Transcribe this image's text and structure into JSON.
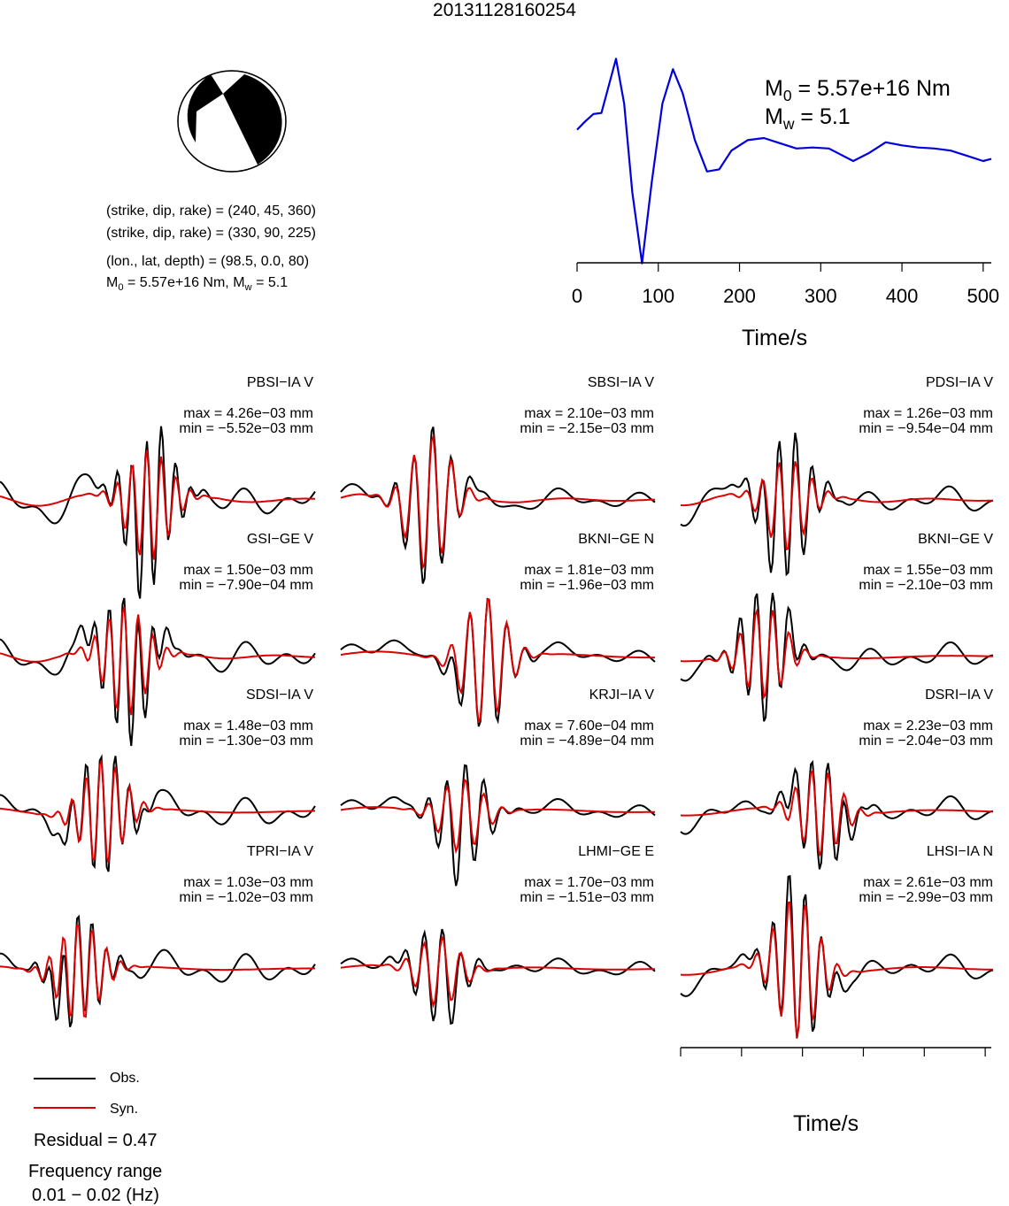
{
  "title": "20131128160254",
  "mechanism": {
    "lines": [
      "(strike, dip, rake) = (240, 45, 360)",
      "(strike, dip, rake) = (330, 90, 225)",
      "(lon., lat, depth) = (98.5, 0.0, 80)"
    ],
    "m0_line_prefix": "M",
    "m0_line_rest": " = 5.57e+16 Nm, M",
    "mw_line_rest": " = 5.1"
  },
  "stf": {
    "m0_text": " = 5.57e+16 Nm",
    "mw_text": " = 5.1",
    "x_ticks": [
      "0",
      "100",
      "200",
      "300",
      "400",
      "500"
    ],
    "xlabel": "Time/s",
    "color": "#0000dd"
  },
  "stations": [
    {
      "name": "PBSI−IA V",
      "max": "max = 4.26e−03 mm",
      "min": "min = −5.52e−03 mm"
    },
    {
      "name": "SBSI−IA V",
      "max": "max = 2.10e−03 mm",
      "min": "min = −2.15e−03 mm"
    },
    {
      "name": "PDSI−IA V",
      "max": "max = 1.26e−03 mm",
      "min": "min = −9.54e−04 mm"
    },
    {
      "name": "GSI−GE V",
      "max": "max = 1.50e−03 mm",
      "min": "min = −7.90e−04 mm"
    },
    {
      "name": "BKNI−GE N",
      "max": "max = 1.81e−03 mm",
      "min": "min = −1.96e−03 mm"
    },
    {
      "name": "BKNI−GE V",
      "max": "max = 1.55e−03 mm",
      "min": "min = −2.10e−03 mm"
    },
    {
      "name": "SDSI−IA V",
      "max": "max = 1.48e−03 mm",
      "min": "min = −1.30e−03 mm"
    },
    {
      "name": "KRJI−IA V",
      "max": "max = 7.60e−04 mm",
      "min": "min = −4.89e−04 mm"
    },
    {
      "name": "DSRI−IA V",
      "max": "max = 2.23e−03 mm",
      "min": "min = −2.04e−03 mm"
    },
    {
      "name": "TPRI−IA V",
      "max": "max = 1.03e−03 mm",
      "min": "min = −1.02e−03 mm"
    },
    {
      "name": "LHMI−GE E",
      "max": "max = 1.70e−03 mm",
      "min": "min = −1.51e−03 mm"
    },
    {
      "name": "LHSI−IA N",
      "max": "max = 2.61e−03 mm",
      "min": "min = −2.99e−03 mm"
    }
  ],
  "bottom_axis": {
    "x_ticks": [
      "0",
      "100",
      "200",
      "300",
      "400",
      "500"
    ],
    "xlabel": "Time/s"
  },
  "legend": {
    "obs_label": "Obs.",
    "syn_label": "Syn.",
    "obs_color": "#000000",
    "syn_color": "#dd0000"
  },
  "residual": "Residual = 0.47",
  "freq_title": "Frequency range",
  "freq_value": "0.01 − 0.02 (Hz)",
  "chart_data": {
    "type": "line",
    "title": "20131128160254",
    "stf": {
      "xlabel": "Time/s",
      "xlim": [
        0,
        510
      ],
      "x": [
        0,
        10,
        20,
        30,
        40,
        48,
        58,
        68,
        80,
        92,
        105,
        118,
        130,
        145,
        160,
        175,
        190,
        210,
        230,
        250,
        270,
        290,
        310,
        340,
        360,
        380,
        400,
        420,
        440,
        460,
        480,
        500,
        510
      ],
      "y": [
        0.3,
        0.38,
        0.45,
        0.46,
        0.75,
        0.98,
        0.55,
        -0.3,
        -0.98,
        -0.2,
        0.55,
        0.88,
        0.65,
        0.2,
        -0.1,
        -0.08,
        0.1,
        0.2,
        0.22,
        0.17,
        0.12,
        0.13,
        0.12,
        0.0,
        0.08,
        0.18,
        0.15,
        0.13,
        0.12,
        0.1,
        0.05,
        0.0,
        0.02
      ]
    },
    "series": [
      {
        "name": "Obs.",
        "color": "#000000"
      },
      {
        "name": "Syn.",
        "color": "#dd0000"
      }
    ],
    "xlabel": "Time/s",
    "xlim": [
      0,
      510
    ]
  }
}
